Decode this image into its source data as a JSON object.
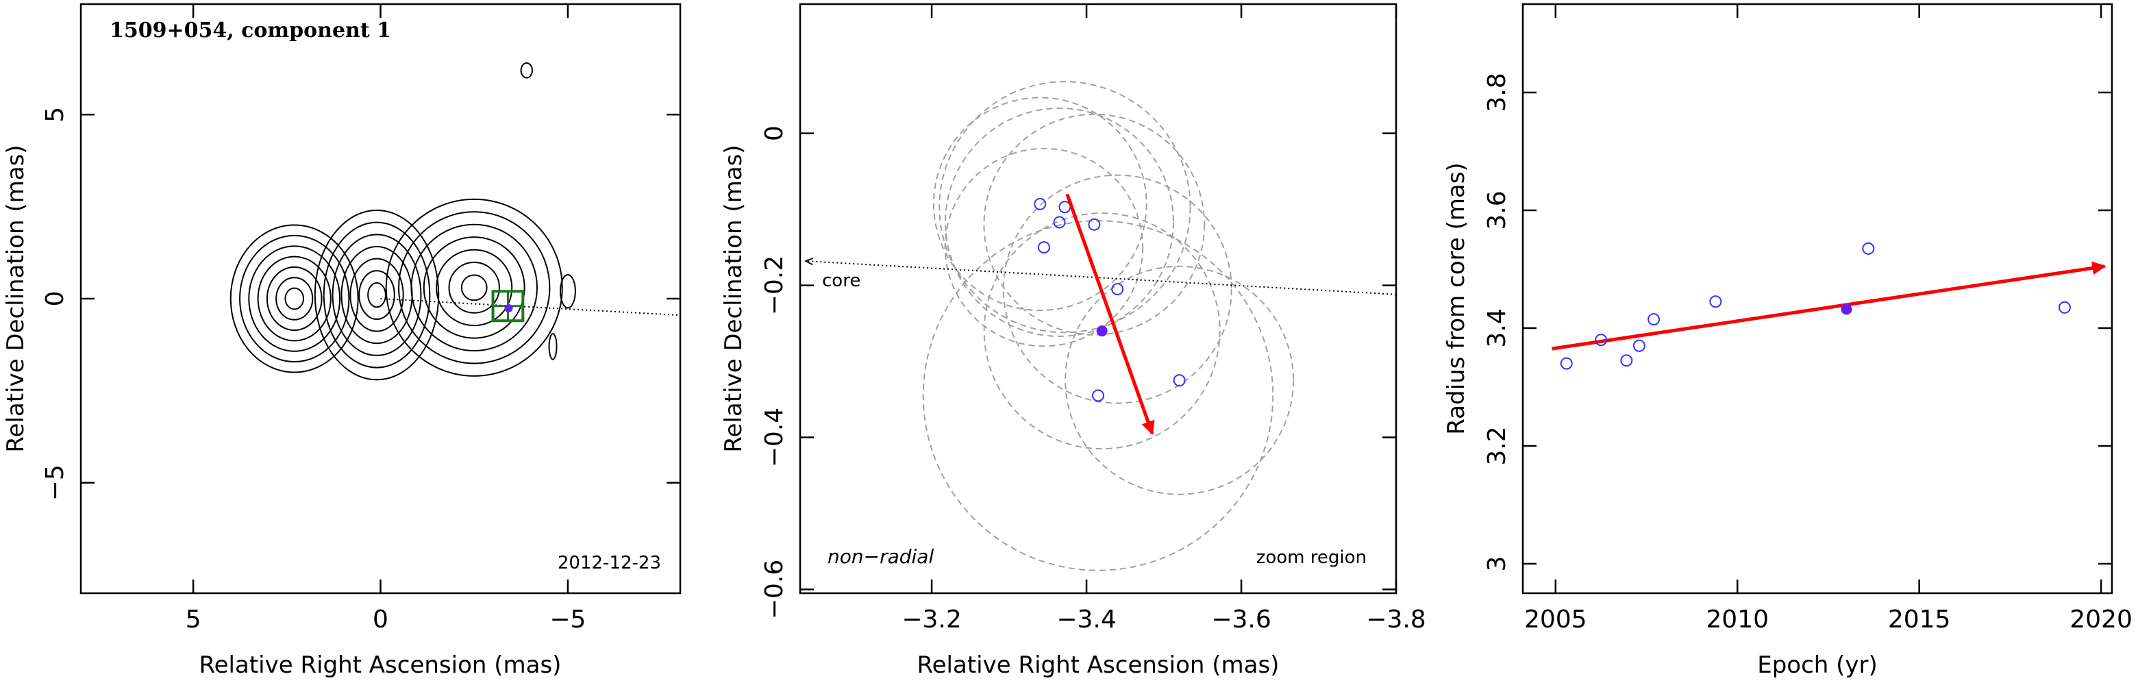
{
  "figure": {
    "title": "1509+054, component 1",
    "date_label": "2012-12-23",
    "core_label": "core",
    "motion_label": "non−radial",
    "zoom_label": "zoom region"
  },
  "chart_data": [
    {
      "type": "contour",
      "panel": "map",
      "xlabel": "Relative Right Ascension (mas)",
      "ylabel": "Relative Declination (mas)",
      "xlim": [
        8,
        -8
      ],
      "ylim": [
        -8,
        8
      ],
      "xticks": [
        {
          "v": 5,
          "label": "5"
        },
        {
          "v": 0,
          "label": "0"
        },
        {
          "v": -5,
          "label": "−5"
        }
      ],
      "yticks": [
        {
          "v": 5,
          "label": "5"
        },
        {
          "v": 0,
          "label": "0"
        },
        {
          "v": -5,
          "label": "−5"
        }
      ],
      "components": [
        {
          "x": 2.3,
          "y": 0.0,
          "rx": 1.7,
          "ry": 2.0
        },
        {
          "x": 0.1,
          "y": 0.1,
          "rx": 1.65,
          "ry": 2.3
        },
        {
          "x": -2.5,
          "y": 0.3,
          "rx": 2.35,
          "ry": 2.4
        }
      ],
      "extra_contours": [
        {
          "x": -3.9,
          "y": 6.2,
          "rx": 0.15,
          "ry": 0.2
        },
        {
          "x": -5.0,
          "y": 0.2,
          "rx": 0.2,
          "ry": 0.45
        },
        {
          "x": -4.6,
          "y": -1.3,
          "rx": 0.1,
          "ry": 0.35
        }
      ],
      "contour_levels": 7,
      "zoom_box": {
        "x": [
          -3.0,
          -3.8
        ],
        "y": [
          -0.6,
          0.2
        ]
      },
      "direction_line": {
        "x": [
          0,
          -8
        ],
        "y": [
          0,
          -0.45
        ]
      },
      "component_position": {
        "x": -3.42,
        "y": -0.26
      }
    },
    {
      "type": "scatter",
      "panel": "zoom",
      "xlabel": "Relative Right Ascension (mas)",
      "ylabel": "Relative Declination (mas)",
      "xlim": [
        -3.03,
        -3.8
      ],
      "ylim": [
        -0.605,
        0.17
      ],
      "xticks": [
        {
          "v": -3.2,
          "label": "−3.2"
        },
        {
          "v": -3.4,
          "label": "−3.4"
        },
        {
          "v": -3.6,
          "label": "−3.6"
        },
        {
          "v": -3.8,
          "label": "−3.8"
        }
      ],
      "yticks": [
        {
          "v": 0,
          "label": "0"
        },
        {
          "v": -0.2,
          "label": "−0.2"
        },
        {
          "v": -0.4,
          "label": "−0.4"
        },
        {
          "v": -0.6,
          "label": "−0.6"
        }
      ],
      "points": [
        {
          "x": -3.34,
          "y": -0.093
        },
        {
          "x": -3.345,
          "y": -0.15
        },
        {
          "x": -3.365,
          "y": -0.117
        },
        {
          "x": -3.372,
          "y": -0.097
        },
        {
          "x": -3.41,
          "y": -0.12
        },
        {
          "x": -3.44,
          "y": -0.205
        },
        {
          "x": -3.52,
          "y": -0.325
        },
        {
          "x": -3.415,
          "y": -0.345
        }
      ],
      "highlight_point": {
        "x": -3.42,
        "y": -0.26
      },
      "error_circles": [
        {
          "x": -3.34,
          "y": -0.093,
          "r": 0.14
        },
        {
          "x": -3.345,
          "y": -0.15,
          "r": 0.13
        },
        {
          "x": -3.365,
          "y": -0.117,
          "r": 0.15
        },
        {
          "x": -3.372,
          "y": -0.097,
          "r": 0.165
        },
        {
          "x": -3.41,
          "y": -0.12,
          "r": 0.145
        },
        {
          "x": -3.44,
          "y": -0.205,
          "r": 0.15
        },
        {
          "x": -3.52,
          "y": -0.325,
          "r": 0.15
        },
        {
          "x": -3.415,
          "y": -0.345,
          "r": 0.23
        },
        {
          "x": -3.42,
          "y": -0.26,
          "r": 0.155
        }
      ],
      "motion_vector": {
        "x": [
          -3.375,
          -3.485
        ],
        "y": [
          -0.08,
          -0.395
        ]
      },
      "core_direction_line": {
        "x": [
          -3.03,
          -3.8
        ],
        "y": [
          -0.168,
          -0.212
        ]
      }
    },
    {
      "type": "scatter",
      "panel": "radius",
      "xlabel": "Epoch (yr)",
      "ylabel": "Radius from core (mas)",
      "xlim": [
        2004.1,
        2020.3
      ],
      "ylim": [
        2.95,
        3.95
      ],
      "xticks": [
        {
          "v": 2005,
          "label": "2005"
        },
        {
          "v": 2010,
          "label": "2010"
        },
        {
          "v": 2015,
          "label": "2015"
        },
        {
          "v": 2020,
          "label": "2020"
        }
      ],
      "yticks": [
        {
          "v": 3,
          "label": "3"
        },
        {
          "v": 3.2,
          "label": "3.2"
        },
        {
          "v": 3.4,
          "label": "3.4"
        },
        {
          "v": 3.6,
          "label": "3.6"
        },
        {
          "v": 3.8,
          "label": "3.8"
        }
      ],
      "x": [
        2005.3,
        2006.25,
        2006.95,
        2007.3,
        2007.7,
        2009.4,
        2013.6,
        2019.0
      ],
      "y": [
        3.34,
        3.38,
        3.345,
        3.37,
        3.415,
        3.445,
        3.535,
        3.435
      ],
      "highlight_point": {
        "x": 2013.0,
        "y": 3.432
      },
      "fit_line": {
        "x": [
          2004.9,
          2020.1
        ],
        "y": [
          3.365,
          3.505
        ]
      }
    }
  ],
  "colors": {
    "axis": "#000000",
    "contour": "#000000",
    "epoch_marker": "#3333ff",
    "highlight": "#6a1cf0",
    "vector": "#ff0000",
    "error_circle": "#a0a0a0",
    "zoom_box": "#1a7a1a"
  }
}
